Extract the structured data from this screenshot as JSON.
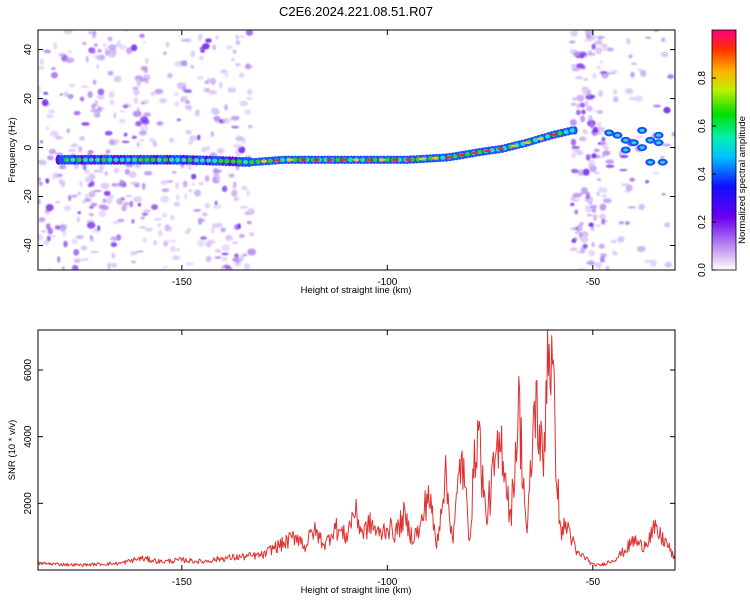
{
  "title": "C2E6.2024.221.08.51.R07",
  "colors": {
    "snr_line": "#e03030",
    "ridge_core": "#e8302a",
    "ridge_mid": "#28d628",
    "ridge_edge": "#2050ff",
    "noise": "#a478f0"
  },
  "chart_data": [
    {
      "type": "heatmap",
      "title": "C2E6.2024.221.08.51.R07",
      "xlabel": "Height of straight line (km)",
      "ylabel": "Frequency (Hz)",
      "colorbar_label": "Normalized spectral amplitude",
      "xlim": [
        -185,
        -30
      ],
      "ylim": [
        -50,
        48
      ],
      "xticks": [
        -150,
        -100,
        -50
      ],
      "xtick_labels": [
        "-150",
        "-100",
        "-50"
      ],
      "yticks": [
        -40,
        -20,
        0,
        20,
        40
      ],
      "ytick_labels": [
        "-40",
        "-20",
        "0",
        "20",
        "40"
      ],
      "colorbar_lim": [
        0.0,
        1.0
      ],
      "colorbar_ticks": [
        0.0,
        0.2,
        0.4,
        0.6,
        0.8
      ],
      "colorbar_tick_labels": [
        "0.0",
        "0.2",
        "0.4",
        "0.6",
        "0.8"
      ],
      "ridge": {
        "x": [
          -180,
          -170,
          -160,
          -150,
          -140,
          -133,
          -125,
          -115,
          -105,
          -95,
          -85,
          -78,
          -72,
          -66,
          -60,
          -55
        ],
        "y": [
          -5,
          -5,
          -5,
          -5,
          -5.5,
          -6,
          -5,
          -5,
          -5,
          -5,
          -4,
          -2,
          -0.5,
          2,
          5,
          7
        ]
      },
      "grid": false,
      "legend": "none"
    },
    {
      "type": "line",
      "xlabel": "Height of straight line (km)",
      "ylabel": "SNR (10 * v/v)",
      "xlim": [
        -185,
        -30
      ],
      "ylim": [
        0,
        7200
      ],
      "xticks": [
        -150,
        -100,
        -50
      ],
      "xtick_labels": [
        "-150",
        "-100",
        "-50"
      ],
      "yticks": [
        2000,
        4000,
        6000
      ],
      "ytick_labels": [
        "2000",
        "4000",
        "6000"
      ],
      "series": [
        {
          "x": [
            -185,
            -175,
            -165,
            -160,
            -155,
            -150,
            -145,
            -140,
            -135,
            -130,
            -128,
            -125,
            -122,
            -120,
            -118,
            -115,
            -113,
            -110,
            -108,
            -106,
            -104,
            -102,
            -100,
            -98,
            -96,
            -94,
            -92,
            -90,
            -88,
            -86,
            -84,
            -82,
            -80,
            -78,
            -76,
            -74,
            -72,
            -70,
            -68,
            -66,
            -64,
            -62,
            -61,
            -60,
            -58,
            -56,
            -54,
            -52,
            -50,
            -48,
            -45,
            -42,
            -40,
            -38,
            -35,
            -32,
            -30
          ],
          "y": [
            200,
            150,
            200,
            350,
            250,
            300,
            250,
            350,
            400,
            450,
            650,
            800,
            1050,
            700,
            1200,
            750,
            1300,
            1000,
            1800,
            1100,
            1400,
            1050,
            1300,
            1100,
            1600,
            1000,
            1200,
            2400,
            700,
            2900,
            900,
            3500,
            1000,
            4500,
            1500,
            3000,
            3800,
            1500,
            4900,
            1000,
            5200,
            3000,
            7100,
            6200,
            1200,
            1300,
            500,
            400,
            150,
            150,
            300,
            600,
            900,
            700,
            1200,
            800,
            300
          ]
        }
      ],
      "grid": false,
      "legend": "none"
    }
  ]
}
